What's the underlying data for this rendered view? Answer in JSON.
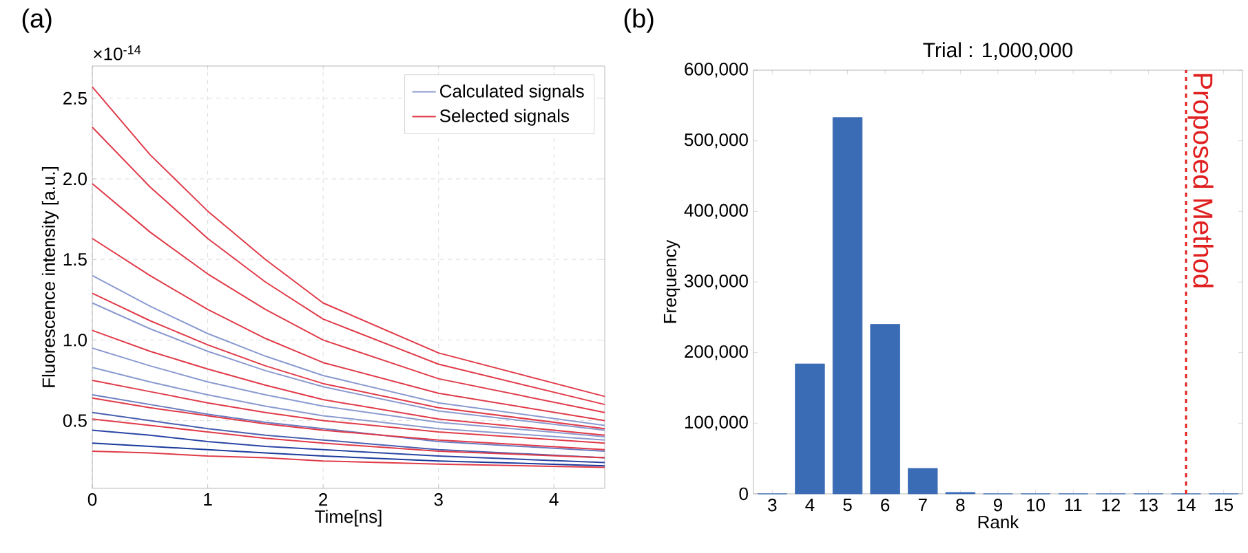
{
  "chart_data": [
    {
      "type": "line",
      "xlabel": "Time[ns]",
      "ylabel": "Fluorescence intensity [a.u.]",
      "annotations": [
        "(a)",
        "×10$^{-14}$"
      ],
      "x": [
        0,
        0.5,
        1,
        1.5,
        2,
        3,
        4.44
      ],
      "series": [
        {
          "name": "Calculated signals",
          "color": "#8a9ad0",
          "values": [
            1.4,
            1.21,
            1.04,
            0.9,
            0.78,
            0.61,
            0.47
          ]
        },
        {
          "color": "#8a9ad0",
          "values": [
            1.23,
            1.07,
            0.93,
            0.81,
            0.71,
            0.56,
            0.44
          ]
        },
        {
          "color": "#8a9ad0",
          "values": [
            0.95,
            0.84,
            0.74,
            0.66,
            0.59,
            0.49,
            0.4
          ]
        },
        {
          "color": "#8a9ad0",
          "values": [
            0.83,
            0.74,
            0.66,
            0.59,
            0.53,
            0.45,
            0.38
          ]
        },
        {
          "color": "#6a7cc0",
          "values": [
            0.66,
            0.6,
            0.54,
            0.49,
            0.45,
            0.37,
            0.31
          ]
        },
        {
          "color": "#4a60b0",
          "values": [
            0.55,
            0.5,
            0.45,
            0.41,
            0.38,
            0.32,
            0.27
          ]
        },
        {
          "color": "#2a45a5",
          "values": [
            0.44,
            0.41,
            0.37,
            0.34,
            0.32,
            0.28,
            0.24
          ]
        },
        {
          "color": "#1a3a9c",
          "values": [
            0.36,
            0.34,
            0.32,
            0.3,
            0.28,
            0.25,
            0.22
          ]
        },
        {
          "name": "Selected signals",
          "color": "#e03a48",
          "values": [
            2.57,
            2.15,
            1.8,
            1.5,
            1.23,
            0.92,
            0.65
          ]
        },
        {
          "color": "#e03a48",
          "values": [
            2.32,
            1.95,
            1.63,
            1.36,
            1.13,
            0.85,
            0.6
          ]
        },
        {
          "color": "#e03a48",
          "values": [
            1.97,
            1.67,
            1.41,
            1.19,
            1.0,
            0.76,
            0.55
          ]
        },
        {
          "color": "#e03a48",
          "values": [
            1.63,
            1.4,
            1.19,
            1.01,
            0.86,
            0.67,
            0.5
          ]
        },
        {
          "color": "#e03a48",
          "values": [
            1.29,
            1.12,
            0.97,
            0.84,
            0.73,
            0.58,
            0.45
          ]
        },
        {
          "color": "#e03a48",
          "values": [
            1.06,
            0.93,
            0.82,
            0.72,
            0.63,
            0.51,
            0.41
          ]
        },
        {
          "color": "#e03a48",
          "values": [
            0.75,
            0.68,
            0.61,
            0.55,
            0.5,
            0.43,
            0.36
          ]
        },
        {
          "color": "#e03a48",
          "values": [
            0.64,
            0.58,
            0.53,
            0.48,
            0.44,
            0.38,
            0.32
          ]
        },
        {
          "color": "#e03a48",
          "values": [
            0.51,
            0.47,
            0.43,
            0.39,
            0.36,
            0.31,
            0.27
          ]
        },
        {
          "color": "#e03a48",
          "values": [
            0.31,
            0.3,
            0.28,
            0.27,
            0.25,
            0.23,
            0.21
          ]
        }
      ],
      "xlim": [
        0,
        4.44
      ],
      "ylim": [
        0.08,
        2.7
      ],
      "xticks": [
        0,
        1,
        2,
        3,
        4
      ],
      "yticks": [
        {
          "value": 0.5,
          "label": "0.5"
        },
        {
          "value": 1,
          "label": "1.0"
        },
        {
          "value": 1.5,
          "label": "1.5"
        },
        {
          "value": 2,
          "label": "2.0"
        },
        {
          "value": 2.5,
          "label": "2.5"
        }
      ],
      "grid": true,
      "legend": "top right",
      "line_style": "solid"
    },
    {
      "type": "bar",
      "title": "Trial : 1,000,000",
      "xlabel": "Rank",
      "ylabel": "Frequency",
      "annotations": [
        "(b)"
      ],
      "x": [
        3,
        4,
        5,
        6,
        7,
        8,
        9,
        10,
        11,
        12,
        13,
        14,
        15
      ],
      "values": [
        0,
        184000,
        533000,
        240000,
        36000,
        2000,
        0,
        0,
        0,
        0,
        0,
        0,
        0
      ],
      "color": "#3a6bb5",
      "xlim": [
        2.5,
        15.5
      ],
      "ylim": [
        0,
        600000
      ],
      "xticks": [
        3,
        4,
        5,
        6,
        7,
        8,
        9,
        10,
        11,
        12,
        13,
        14,
        15
      ],
      "yticks": [
        0,
        {
          "value": 100000,
          "label": "100,000"
        },
        {
          "value": 200000,
          "label": "200,000"
        },
        {
          "value": 300000,
          "label": "300,000"
        },
        {
          "value": 400000,
          "label": "400,000"
        },
        {
          "value": 500000,
          "label": "500,000"
        },
        {
          "value": 600000,
          "label": "600,000"
        }
      ],
      "ref_lines": [
        {
          "axis": "x",
          "value": 14,
          "label": "Proposed Method",
          "color": "#e02020",
          "line_style": "dashed"
        }
      ]
    }
  ]
}
